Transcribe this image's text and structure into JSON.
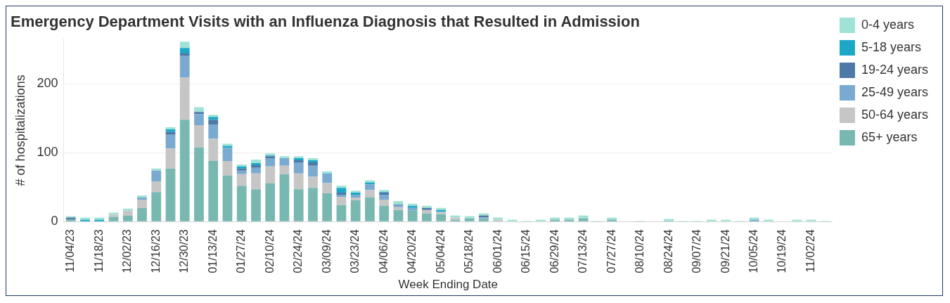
{
  "chart_data": {
    "type": "bar",
    "title": "Emergency Department Visits with an Influenza Diagnosis that Resulted in Admission",
    "xlabel": "Week Ending Date",
    "ylabel": "# of hospitalizations",
    "stacked": true,
    "legend": "right",
    "grid": "y",
    "ylim": [
      0,
      265
    ],
    "yticks": [
      0,
      100,
      200
    ],
    "categories": [
      "11/04/23",
      null,
      "11/18/23",
      null,
      "12/02/23",
      null,
      "12/16/23",
      null,
      "12/30/23",
      null,
      "01/13/24",
      null,
      "01/27/24",
      null,
      "02/10/24",
      null,
      "02/24/24",
      null,
      "03/09/24",
      null,
      "03/23/24",
      null,
      "04/06/24",
      null,
      "04/20/24",
      null,
      "05/04/24",
      null,
      "05/18/24",
      null,
      "06/01/24",
      null,
      "06/15/24",
      null,
      "06/29/24",
      null,
      "07/13/24",
      null,
      "07/27/24",
      null,
      "08/10/24",
      null,
      "08/24/24",
      null,
      "09/07/24",
      null,
      "09/21/24",
      null,
      "10/05/24",
      null,
      "10/19/24",
      null,
      "11/02/24",
      null
    ],
    "series": [
      {
        "name": "65+ years",
        "color": "#79b8b0",
        "values": [
          3,
          0,
          0,
          7,
          9,
          20,
          43,
          77,
          148,
          108,
          88,
          67,
          52,
          47,
          56,
          69,
          47,
          49,
          41,
          24,
          31,
          35,
          23,
          17,
          16,
          12,
          11,
          3,
          5,
          5,
          0,
          0,
          0,
          0,
          3,
          3,
          5,
          0,
          3,
          0,
          0,
          0,
          1,
          0,
          0,
          0,
          0,
          0,
          0,
          0,
          0,
          0,
          0,
          0
        ]
      },
      {
        "name": "50-64 years",
        "color": "#c6c6c6",
        "values": [
          0,
          0,
          0,
          3,
          7,
          12,
          15,
          29,
          61,
          32,
          32,
          21,
          17,
          23,
          24,
          12,
          23,
          16,
          15,
          12,
          4,
          11,
          9,
          4,
          null,
          5,
          3,
          3,
          0,
          0,
          3,
          0,
          0,
          0,
          0,
          0,
          0,
          0,
          0,
          0,
          0,
          0,
          0,
          0,
          0,
          0,
          0,
          0,
          0,
          0,
          0,
          0,
          null,
          0
        ]
      },
      {
        "name": "25-49 years",
        "color": "#7aaad0",
        "values": [
          0,
          0,
          0,
          0,
          0,
          3,
          16,
          20,
          32,
          16,
          21,
          19,
          5,
          8,
          12,
          11,
          16,
          16,
          13,
          3,
          4,
          8,
          7,
          3,
          4,
          0,
          0,
          0,
          0,
          1,
          0,
          0,
          0,
          0,
          0,
          0,
          0,
          0,
          0,
          0,
          0,
          0,
          0,
          0,
          0,
          0,
          0,
          0,
          3,
          0,
          0,
          0,
          0,
          0
        ]
      },
      {
        "name": "19-24 years",
        "color": "#4e79a7",
        "values": [
          3,
          0,
          0,
          0,
          0,
          0,
          0,
          4,
          3,
          3,
          7,
          0,
          3,
          4,
          3,
          0,
          3,
          5,
          0,
          3,
          0,
          0,
          3,
          1,
          0,
          3,
          0,
          0,
          0,
          3,
          0,
          0,
          0,
          0,
          0,
          0,
          0,
          0,
          0,
          0,
          0,
          0,
          0,
          0,
          0,
          0,
          0,
          0,
          0,
          0,
          0,
          0,
          0,
          0
        ]
      },
      {
        "name": "5-18 years",
        "color": "#1ea8c8",
        "values": [
          0,
          3,
          3,
          0,
          0,
          0,
          0,
          4,
          8,
          0,
          4,
          3,
          3,
          3,
          1,
          0,
          3,
          3,
          1,
          7,
          3,
          3,
          1,
          0,
          3,
          0,
          3,
          0,
          0,
          0,
          0,
          0,
          0,
          0,
          0,
          0,
          0,
          0,
          0,
          0,
          0,
          0,
          0,
          0,
          0,
          0,
          0,
          0,
          0,
          0,
          0,
          0,
          0,
          0
        ]
      },
      {
        "name": "0-4 years",
        "color": "#a0e3d6",
        "values": [
          2,
          3,
          3,
          3,
          3,
          3,
          3,
          3,
          9,
          7,
          3,
          3,
          3,
          5,
          3,
          3,
          3,
          3,
          3,
          3,
          3,
          3,
          3,
          5,
          3,
          3,
          3,
          3,
          3,
          3,
          3,
          3,
          1,
          3,
          3,
          3,
          4,
          1,
          3,
          0,
          1,
          0,
          3,
          1,
          1,
          3,
          3,
          1,
          3,
          3,
          0,
          3,
          3,
          1
        ]
      }
    ]
  }
}
